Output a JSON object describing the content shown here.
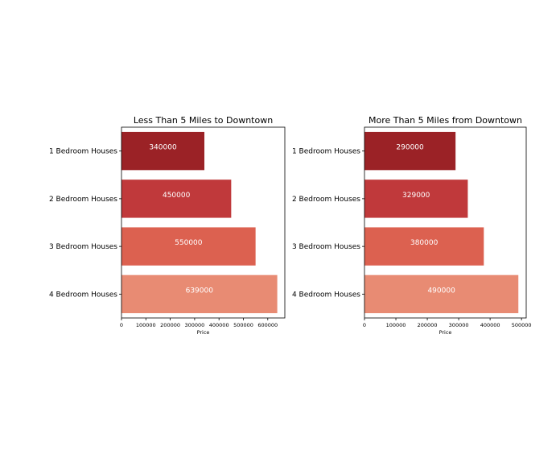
{
  "chart_data": [
    {
      "type": "bar",
      "orientation": "horizontal",
      "title": "Less Than 5 Miles to Downtown",
      "categories": [
        "1 Bedroom Houses",
        "2 Bedroom Houses",
        "3 Bedroom Houses",
        "4 Bedroom Houses"
      ],
      "values": [
        340000,
        450000,
        550000,
        639000
      ],
      "value_labels": [
        "340000",
        "450000",
        "550000",
        "639000"
      ],
      "xlabel": "Price",
      "ylabel": "",
      "xlim": [
        0,
        670000
      ],
      "xticks": [
        0,
        100000,
        200000,
        300000,
        400000,
        500000,
        600000
      ],
      "xtick_labels": [
        "0",
        "100000",
        "200000",
        "300000",
        "400000",
        "500000",
        "600000"
      ],
      "colors": [
        "#9b2226",
        "#c0393b",
        "#dc6150",
        "#e88b73"
      ],
      "grid": false,
      "legend": "none"
    },
    {
      "type": "bar",
      "orientation": "horizontal",
      "title": "More Than 5 Miles from Downtown",
      "categories": [
        "1 Bedroom Houses",
        "2 Bedroom Houses",
        "3 Bedroom Houses",
        "4 Bedroom Houses"
      ],
      "values": [
        290000,
        329000,
        380000,
        490000
      ],
      "value_labels": [
        "290000",
        "329000",
        "380000",
        "490000"
      ],
      "xlabel": "Price",
      "ylabel": "",
      "xlim": [
        0,
        515000
      ],
      "xticks": [
        0,
        100000,
        200000,
        300000,
        400000,
        500000
      ],
      "xtick_labels": [
        "0",
        "100000",
        "200000",
        "300000",
        "400000",
        "500000"
      ],
      "colors": [
        "#9b2226",
        "#c0393b",
        "#dc6150",
        "#e88b73"
      ],
      "grid": false,
      "legend": "none"
    }
  ]
}
